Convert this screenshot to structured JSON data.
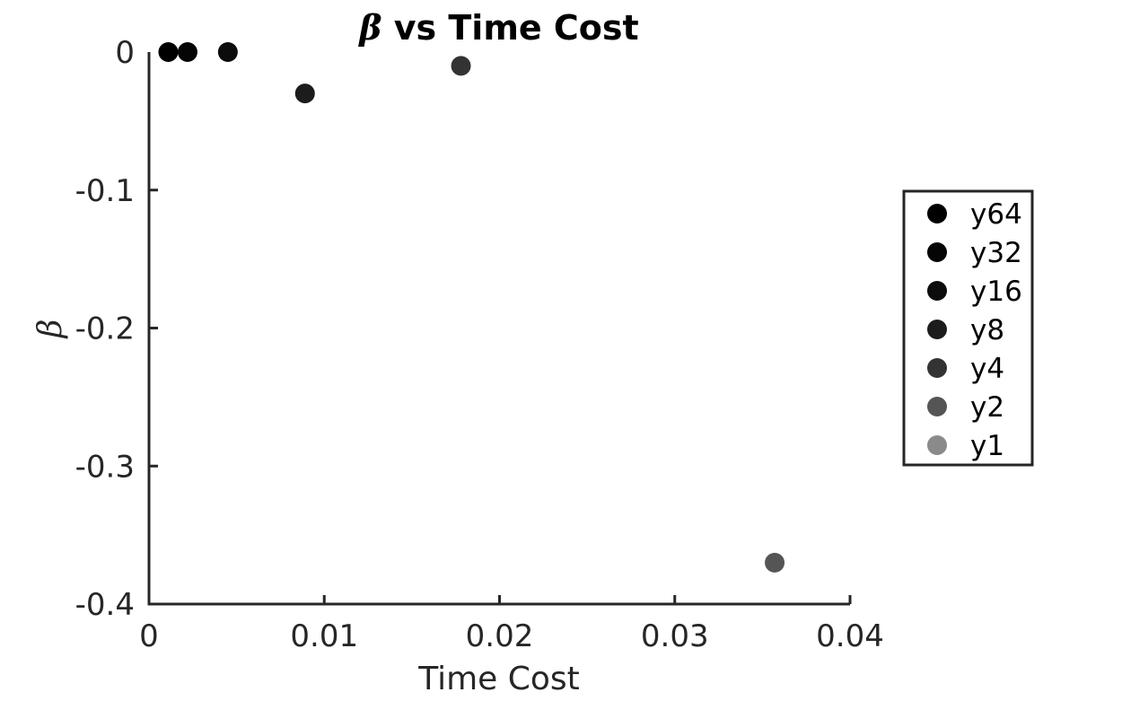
{
  "chart_data": {
    "type": "scatter",
    "title": "β vs Time Cost",
    "title_symbol": "β",
    "title_rest": " vs Time Cost",
    "xlabel": "Time Cost",
    "ylabel": "β",
    "xlim": [
      0,
      0.04
    ],
    "ylim": [
      -0.4,
      0
    ],
    "xticks": [
      0,
      0.01,
      0.02,
      0.03,
      0.04
    ],
    "xtick_labels": [
      "0",
      "0.01",
      "0.02",
      "0.03",
      "0.04"
    ],
    "yticks": [
      0,
      -0.1,
      -0.2,
      -0.3,
      -0.4
    ],
    "ytick_labels": [
      "0",
      "-0.1",
      "-0.2",
      "-0.3",
      "-0.4"
    ],
    "grid": false,
    "legend_position": "right",
    "series": [
      {
        "name": "y64",
        "color": "#000000",
        "x": [
          0.0011
        ],
        "y": [
          0
        ]
      },
      {
        "name": "y32",
        "color": "#050505",
        "x": [
          0.0022
        ],
        "y": [
          0
        ]
      },
      {
        "name": "y16",
        "color": "#0c0c0c",
        "x": [
          0.0045
        ],
        "y": [
          0
        ]
      },
      {
        "name": "y8",
        "color": "#1c1c1c",
        "x": [
          0.0089
        ],
        "y": [
          -0.03
        ]
      },
      {
        "name": "y4",
        "color": "#333333",
        "x": [
          0.0178
        ],
        "y": [
          -0.01
        ]
      },
      {
        "name": "y2",
        "color": "#555555",
        "x": [
          0.0357
        ],
        "y": [
          -0.37
        ]
      },
      {
        "name": "y1",
        "color": "#8a8a8a",
        "x": [],
        "y": []
      }
    ]
  }
}
